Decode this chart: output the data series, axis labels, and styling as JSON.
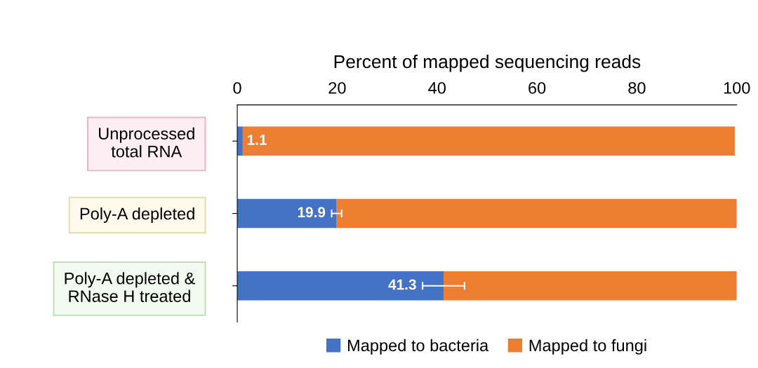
{
  "chart_data": {
    "type": "bar",
    "orientation": "horizontal",
    "stacked": true,
    "xlabel": "Percent of mapped sequencing reads",
    "categories": [
      "Unprocessed\ntotal RNA",
      "Poly-A depleted",
      "Poly-A depleted &\nRNase H treated"
    ],
    "series": [
      {
        "name": "Mapped to bacteria",
        "color": "#4472c4",
        "values": [
          1.1,
          19.9,
          41.3
        ],
        "errors": [
          null,
          1.0,
          4.2
        ],
        "value_labels": [
          "1.1",
          "19.9",
          "41.3"
        ]
      },
      {
        "name": "Mapped to fungi",
        "color": "#ed7d31",
        "values": [
          98.5,
          80.1,
          58.7
        ]
      }
    ],
    "xlim": [
      0,
      100
    ],
    "xticks": [
      0,
      20,
      40,
      60,
      80,
      100
    ],
    "grid": false,
    "legend": "bottom"
  }
}
